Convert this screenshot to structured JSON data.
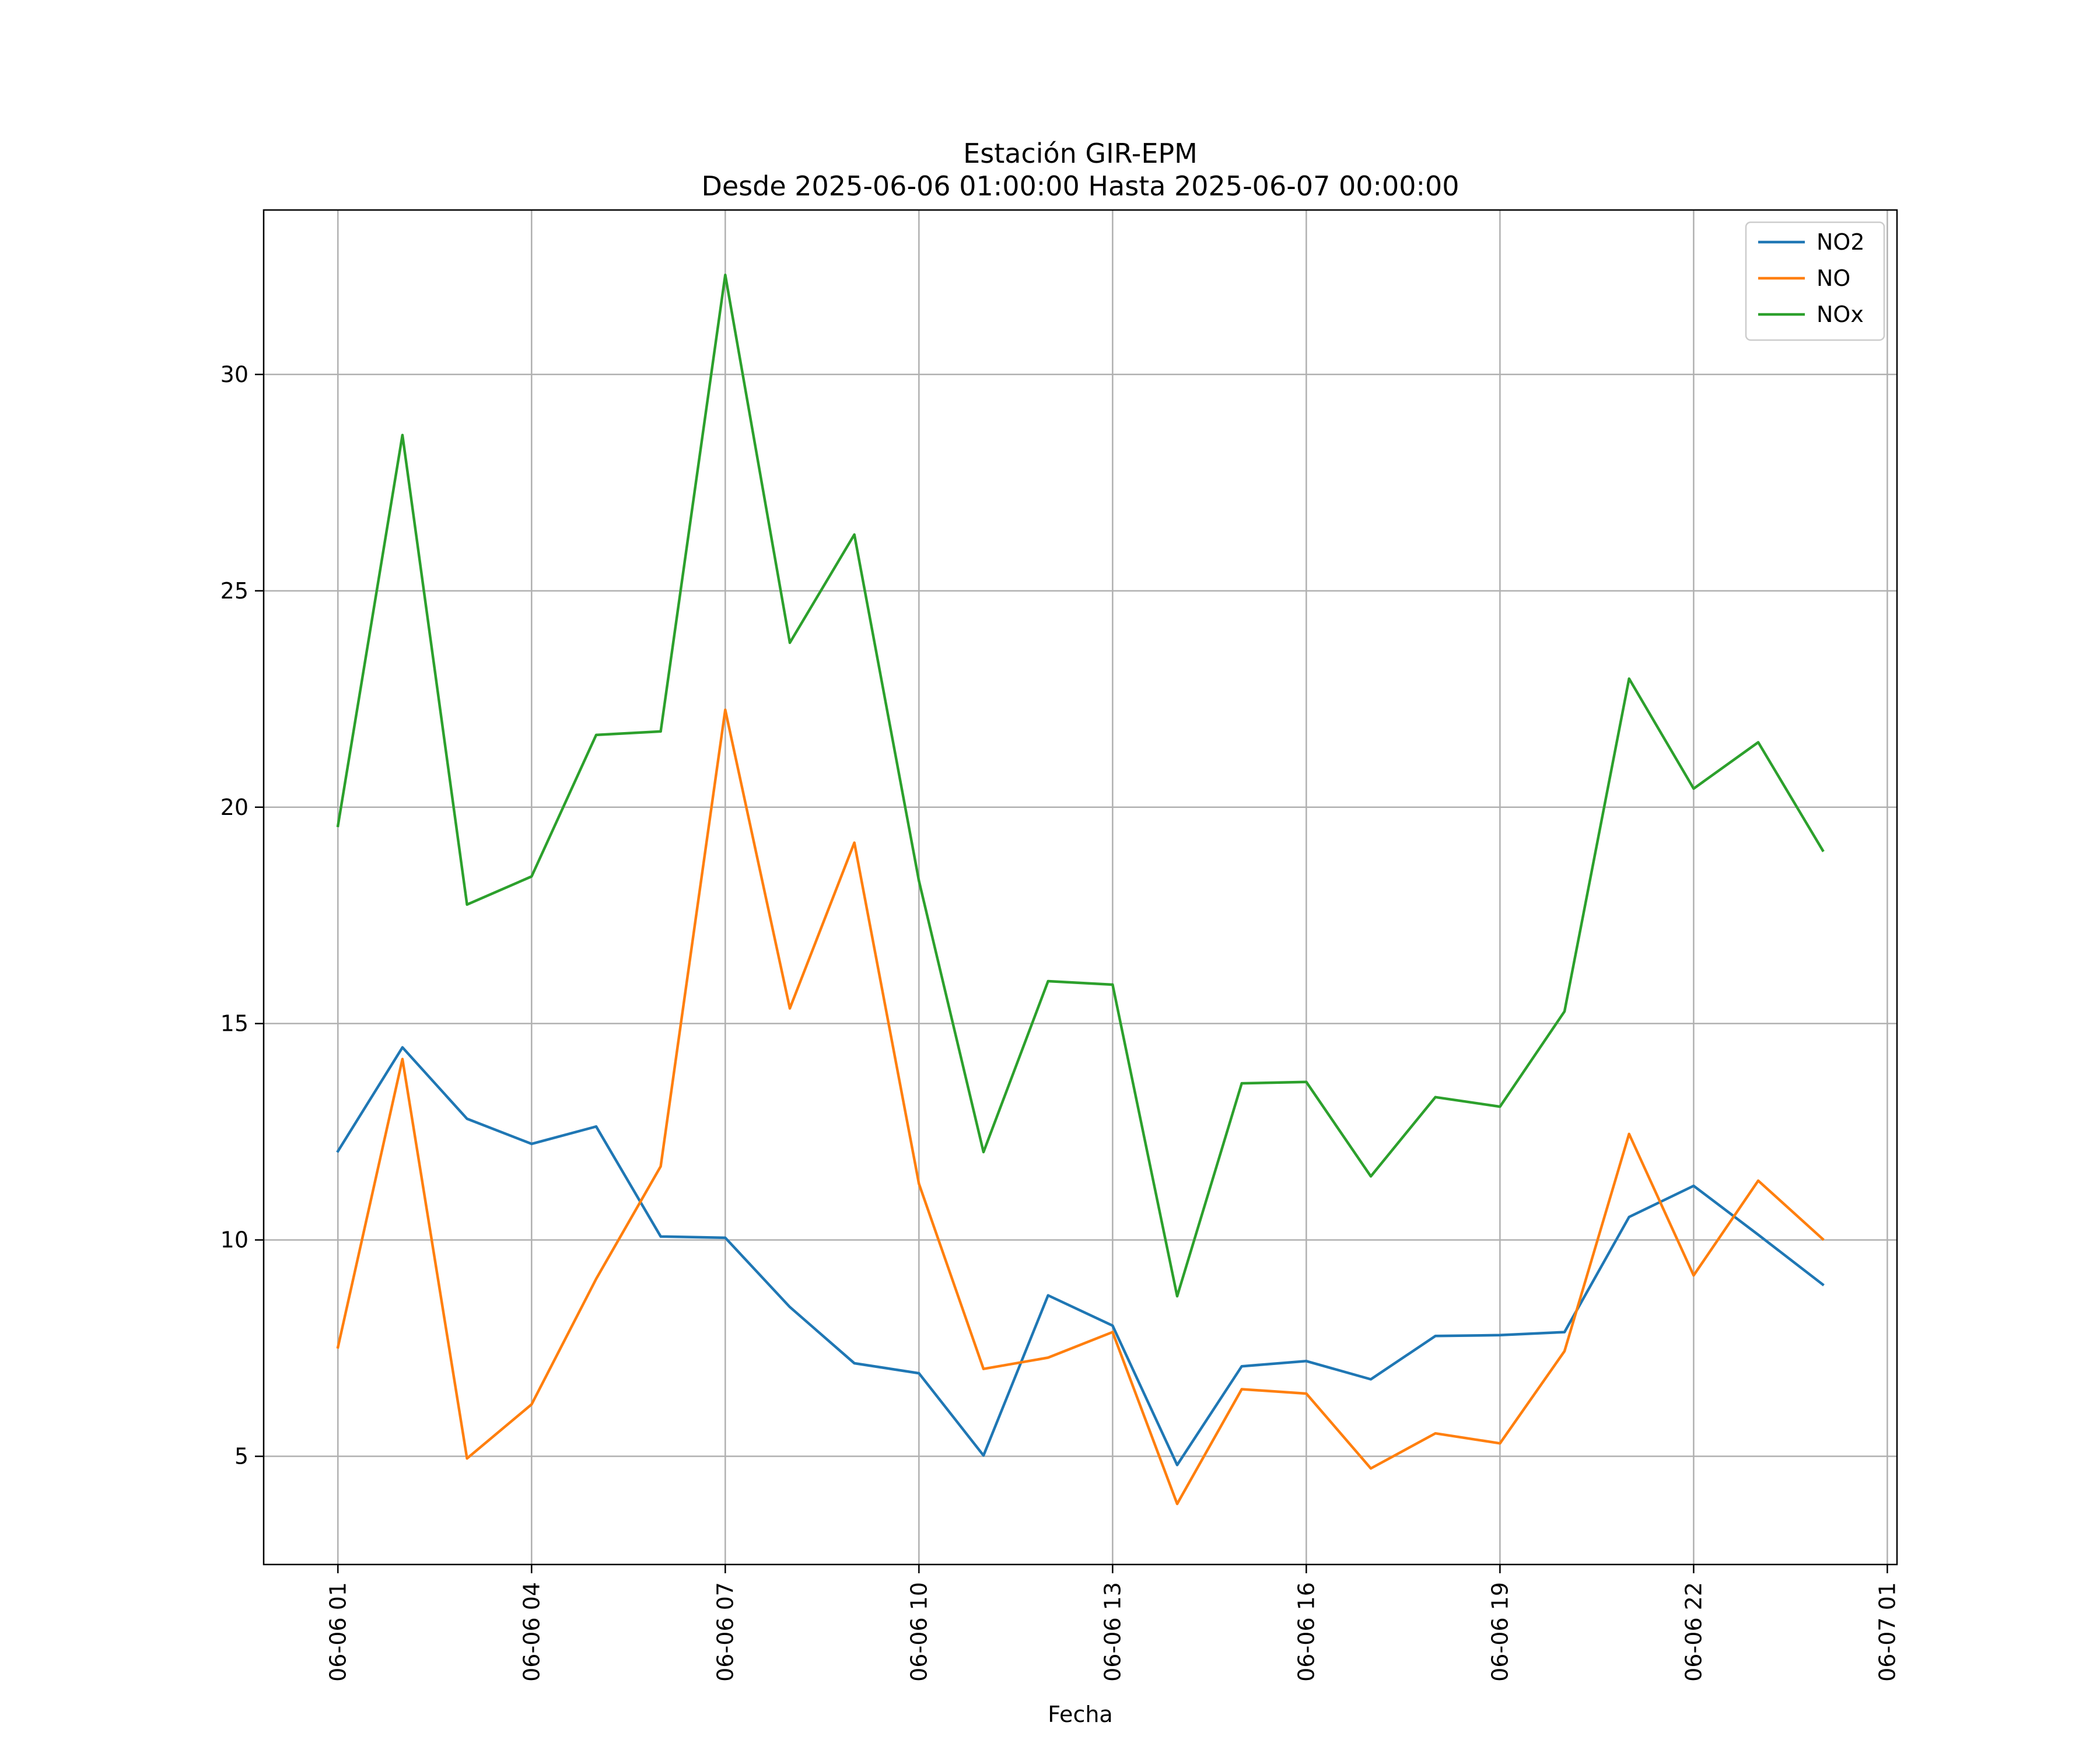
{
  "chart_data": {
    "type": "line",
    "title": "Estación GIR-EPM",
    "subtitle": "Desde 2025-06-06 01:00:00 Hasta 2025-06-07 00:00:00",
    "xlabel": "Fecha",
    "ylabel": "",
    "x": [
      "2025-06-06 01:00",
      "2025-06-06 02:00",
      "2025-06-06 03:00",
      "2025-06-06 04:00",
      "2025-06-06 05:00",
      "2025-06-06 06:00",
      "2025-06-06 07:00",
      "2025-06-06 08:00",
      "2025-06-06 09:00",
      "2025-06-06 10:00",
      "2025-06-06 11:00",
      "2025-06-06 12:00",
      "2025-06-06 13:00",
      "2025-06-06 14:00",
      "2025-06-06 15:00",
      "2025-06-06 16:00",
      "2025-06-06 17:00",
      "2025-06-06 18:00",
      "2025-06-06 19:00",
      "2025-06-06 20:00",
      "2025-06-06 21:00",
      "2025-06-06 22:00",
      "2025-06-06 23:00",
      "2025-06-07 00:00"
    ],
    "x_hours": [
      1,
      2,
      3,
      4,
      5,
      6,
      7,
      8,
      9,
      10,
      11,
      12,
      13,
      14,
      15,
      16,
      17,
      18,
      19,
      20,
      21,
      22,
      23,
      24
    ],
    "xlim_hours": [
      -0.15,
      25.15
    ],
    "ylim": [
      2.5,
      33.8
    ],
    "x_ticks": [
      {
        "hour": 1,
        "label": "06-06 01"
      },
      {
        "hour": 4,
        "label": "06-06 04"
      },
      {
        "hour": 7,
        "label": "06-06 07"
      },
      {
        "hour": 10,
        "label": "06-06 10"
      },
      {
        "hour": 13,
        "label": "06-06 13"
      },
      {
        "hour": 16,
        "label": "06-06 16"
      },
      {
        "hour": 19,
        "label": "06-06 19"
      },
      {
        "hour": 22,
        "label": "06-06 22"
      },
      {
        "hour": 25,
        "label": "06-07 01"
      }
    ],
    "y_ticks": [
      5,
      10,
      15,
      20,
      25,
      30
    ],
    "grid": true,
    "legend_position": "top-right",
    "series": [
      {
        "name": "NO2",
        "color": "#1f77b4",
        "values": [
          12.05,
          14.45,
          12.8,
          12.22,
          12.62,
          10.08,
          10.05,
          8.45,
          7.15,
          6.92,
          5.02,
          8.72,
          8.02,
          4.8,
          7.08,
          7.2,
          6.78,
          7.78,
          7.8,
          7.87,
          10.53,
          11.25,
          10.12,
          8.97
        ]
      },
      {
        "name": "NO",
        "color": "#ff7f0e",
        "values": [
          7.52,
          14.18,
          4.95,
          6.2,
          9.1,
          11.7,
          22.25,
          15.35,
          19.18,
          11.3,
          7.02,
          7.28,
          7.87,
          3.9,
          6.55,
          6.45,
          4.72,
          5.53,
          5.3,
          7.43,
          12.45,
          9.18,
          11.37,
          10.02
        ]
      },
      {
        "name": "NOx",
        "color": "#2ca02c",
        "values": [
          19.57,
          28.6,
          17.75,
          18.4,
          21.67,
          21.75,
          32.3,
          23.8,
          26.3,
          18.3,
          12.03,
          15.98,
          15.9,
          8.7,
          13.62,
          13.65,
          11.47,
          13.3,
          13.08,
          15.28,
          22.97,
          20.43,
          21.5,
          19.0
        ]
      }
    ]
  }
}
